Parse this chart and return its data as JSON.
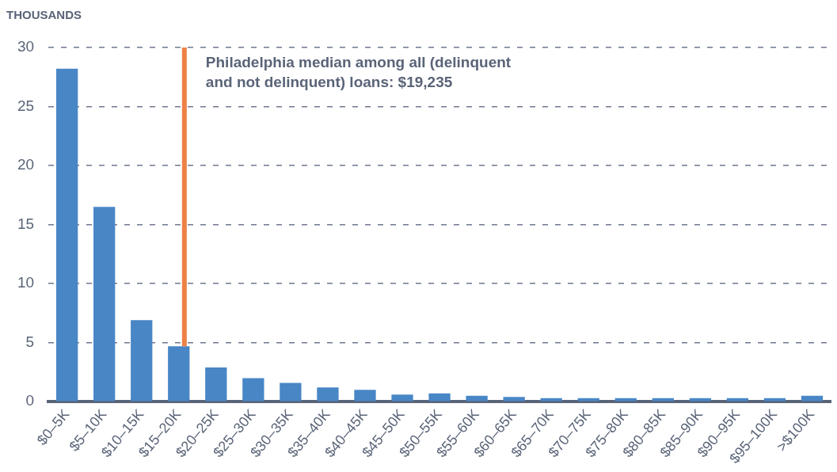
{
  "chart_data": {
    "type": "bar",
    "ylabel": "THOUSANDS",
    "categories": [
      "$0–5K",
      "$5–10K",
      "$10–15K",
      "$15–20K",
      "$20–25K",
      "$25–30K",
      "$30–35K",
      "$35–40K",
      "$40–45K",
      "$45–50K",
      "$50–55K",
      "$55–60K",
      "$60–65K",
      "$65–70K",
      "$70–75K",
      "$75–80K",
      "$80–85K",
      "$85–90K",
      "$90–95K",
      "$95–100K",
      ">$100K"
    ],
    "values": [
      28.2,
      16.5,
      6.9,
      4.7,
      2.9,
      2.0,
      1.6,
      1.2,
      1.0,
      0.6,
      0.7,
      0.5,
      0.4,
      0.3,
      0.3,
      0.3,
      0.3,
      0.3,
      0.3,
      0.3,
      0.5
    ],
    "color": "#4886c6",
    "ylim": [
      0,
      30
    ],
    "yticks": [
      0,
      5,
      10,
      15,
      20,
      25,
      30
    ],
    "grid": "y",
    "legend": false,
    "ref_lines": [
      {
        "axis": "x",
        "value": "$15–20K",
        "label": "Philadelphia median among all (delinquent and not delinquent) loans: $19,235",
        "color": "#ec8146"
      }
    ]
  }
}
